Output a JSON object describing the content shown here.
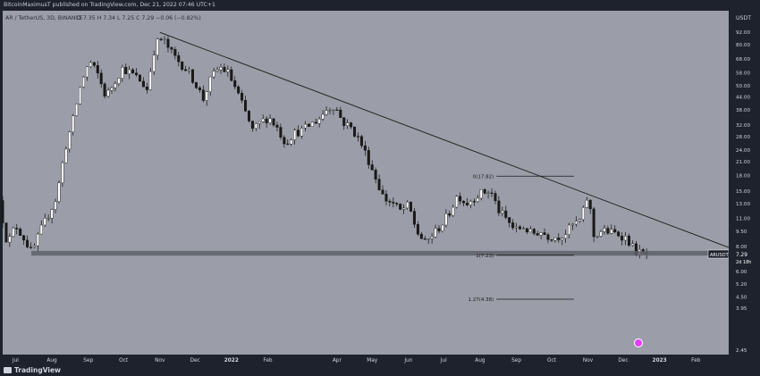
{
  "header": {
    "publisher": "BitcoinMaximusT published on TradingView.com, Dec 21, 2022 07:46 UTC+1",
    "symbol": "AR / TetherUS, 3D, BINANCE",
    "ohlc": "O 7.35  H 7.34  L 7.25  C 7.29  −0.06 (−0.82%)"
  },
  "footer": {
    "brand": "TradingView"
  },
  "colors": {
    "background": "#9b9ea8",
    "up_candle": "#ffffff",
    "down_candle": "#1a1a1a",
    "wick": "#111111",
    "price_tag": "#1e222d"
  },
  "chart_data": {
    "type": "candlestick",
    "symbol": "ARUSDT",
    "current_price": 7.29,
    "countdown": "2d 18h",
    "y_scale": "log",
    "y_unit": "USDT",
    "y_ticks": [
      2.45,
      3.95,
      4.5,
      5.2,
      6.0,
      8.0,
      9.5,
      11.0,
      13.0,
      15.0,
      18.0,
      21.0,
      24.0,
      28.0,
      32.0,
      38.0,
      44.0,
      50.0,
      58.0,
      68.0,
      80.0,
      92.0
    ],
    "y_tick_labels": [
      "2.45",
      "3.95",
      "4.50",
      "5.20",
      "6.00",
      "8.00",
      "9.50",
      "11.00",
      "13.00",
      "15.00",
      "18.00",
      "21.00",
      "24.00",
      "28.00",
      "32.00",
      "38.00",
      "44.00",
      "50.00",
      "58.00",
      "68.00",
      "80.00",
      "92.00"
    ],
    "x_range": [
      "2021-06-20",
      "2023-03-01"
    ],
    "x_ticks": [
      {
        "date": "2021-07-01",
        "label": "Jul"
      },
      {
        "date": "2021-08-01",
        "label": "Aug"
      },
      {
        "date": "2021-09-01",
        "label": "Sep"
      },
      {
        "date": "2021-10-01",
        "label": "Oct"
      },
      {
        "date": "2021-11-01",
        "label": "Nov"
      },
      {
        "date": "2021-12-01",
        "label": "Dec"
      },
      {
        "date": "2022-01-01",
        "label": "2022"
      },
      {
        "date": "2022-02-01",
        "label": "Feb"
      },
      {
        "date": "2022-04-01",
        "label": "Apr"
      },
      {
        "date": "2022-05-01",
        "label": "May"
      },
      {
        "date": "2022-06-01",
        "label": "Jun"
      },
      {
        "date": "2022-07-01",
        "label": "Jul"
      },
      {
        "date": "2022-08-01",
        "label": "Aug"
      },
      {
        "date": "2022-09-01",
        "label": "Sep"
      },
      {
        "date": "2022-10-01",
        "label": "Oct"
      },
      {
        "date": "2022-11-01",
        "label": "Nov"
      },
      {
        "date": "2022-12-01",
        "label": "Dec"
      },
      {
        "date": "2023-01-01",
        "label": "2023"
      },
      {
        "date": "2023-02-01",
        "label": "Feb"
      }
    ],
    "support_zone": [
      7.2,
      7.6
    ],
    "trendline": [
      {
        "date": "2021-11-01",
        "price": 92.0
      },
      {
        "date": "2023-03-01",
        "price": 7.9
      }
    ],
    "fib_levels": [
      {
        "label": "0(17.82)",
        "price": 17.82,
        "start": "2022-08-15",
        "end": "2022-10-20"
      },
      {
        "label": "1(7.23)",
        "price": 7.23,
        "start": "2022-08-15",
        "end": "2022-10-20"
      },
      {
        "label": "1.27(4.38)",
        "price": 4.38,
        "start": "2022-08-15",
        "end": "2022-10-20"
      }
    ],
    "price_path": [
      [
        "2021-06-20",
        13.5
      ],
      [
        "2021-06-27",
        8.2
      ],
      [
        "2021-07-04",
        10.2
      ],
      [
        "2021-07-11",
        8.8
      ],
      [
        "2021-07-18",
        7.4
      ],
      [
        "2021-07-25",
        9.5
      ],
      [
        "2021-08-01",
        11.5
      ],
      [
        "2021-08-08",
        14.0
      ],
      [
        "2021-08-15",
        24.0
      ],
      [
        "2021-08-22",
        34.0
      ],
      [
        "2021-08-29",
        52.0
      ],
      [
        "2021-09-05",
        66.0
      ],
      [
        "2021-09-12",
        57.0
      ],
      [
        "2021-09-19",
        44.0
      ],
      [
        "2021-09-26",
        52.0
      ],
      [
        "2021-10-03",
        61.0
      ],
      [
        "2021-10-10",
        58.0
      ],
      [
        "2021-10-17",
        54.0
      ],
      [
        "2021-10-24",
        48.0
      ],
      [
        "2021-10-31",
        80.0
      ],
      [
        "2021-11-06",
        86.0
      ],
      [
        "2021-11-13",
        74.0
      ],
      [
        "2021-11-20",
        66.0
      ],
      [
        "2021-11-27",
        60.0
      ],
      [
        "2021-12-04",
        52.0
      ],
      [
        "2021-12-11",
        43.0
      ],
      [
        "2021-12-18",
        55.0
      ],
      [
        "2021-12-25",
        62.0
      ],
      [
        "2022-01-01",
        58.0
      ],
      [
        "2022-01-08",
        48.0
      ],
      [
        "2022-01-15",
        38.0
      ],
      [
        "2022-01-22",
        30.0
      ],
      [
        "2022-01-29",
        33.0
      ],
      [
        "2022-02-05",
        35.0
      ],
      [
        "2022-02-12",
        31.0
      ],
      [
        "2022-02-19",
        26.0
      ],
      [
        "2022-02-26",
        29.0
      ],
      [
        "2022-03-05",
        30.0
      ],
      [
        "2022-03-12",
        32.0
      ],
      [
        "2022-03-19",
        34.0
      ],
      [
        "2022-03-26",
        38.0
      ],
      [
        "2022-04-02",
        40.0
      ],
      [
        "2022-04-09",
        33.0
      ],
      [
        "2022-04-16",
        31.0
      ],
      [
        "2022-04-23",
        27.0
      ],
      [
        "2022-04-30",
        22.0
      ],
      [
        "2022-05-07",
        17.5
      ],
      [
        "2022-05-14",
        13.8
      ],
      [
        "2022-05-21",
        13.2
      ],
      [
        "2022-05-28",
        12.0
      ],
      [
        "2022-06-04",
        12.8
      ],
      [
        "2022-06-11",
        9.5
      ],
      [
        "2022-06-18",
        8.3
      ],
      [
        "2022-06-25",
        9.2
      ],
      [
        "2022-07-02",
        10.2
      ],
      [
        "2022-07-09",
        11.8
      ],
      [
        "2022-07-16",
        14.5
      ],
      [
        "2022-07-23",
        13.0
      ],
      [
        "2022-07-30",
        14.0
      ],
      [
        "2022-08-06",
        14.8
      ],
      [
        "2022-08-13",
        15.0
      ],
      [
        "2022-08-20",
        12.0
      ],
      [
        "2022-08-27",
        10.8
      ],
      [
        "2022-09-03",
        9.6
      ],
      [
        "2022-09-10",
        10.0
      ],
      [
        "2022-09-17",
        9.2
      ],
      [
        "2022-09-24",
        9.5
      ],
      [
        "2022-10-01",
        9.0
      ],
      [
        "2022-10-08",
        8.9
      ],
      [
        "2022-10-15",
        9.2
      ],
      [
        "2022-10-22",
        10.2
      ],
      [
        "2022-10-29",
        10.8
      ],
      [
        "2022-11-04",
        14.5
      ],
      [
        "2022-11-09",
        9.0
      ],
      [
        "2022-11-16",
        9.6
      ],
      [
        "2022-11-23",
        9.4
      ],
      [
        "2022-11-30",
        9.2
      ],
      [
        "2022-12-07",
        8.8
      ],
      [
        "2022-12-14",
        7.6
      ],
      [
        "2022-12-21",
        7.29
      ]
    ]
  }
}
